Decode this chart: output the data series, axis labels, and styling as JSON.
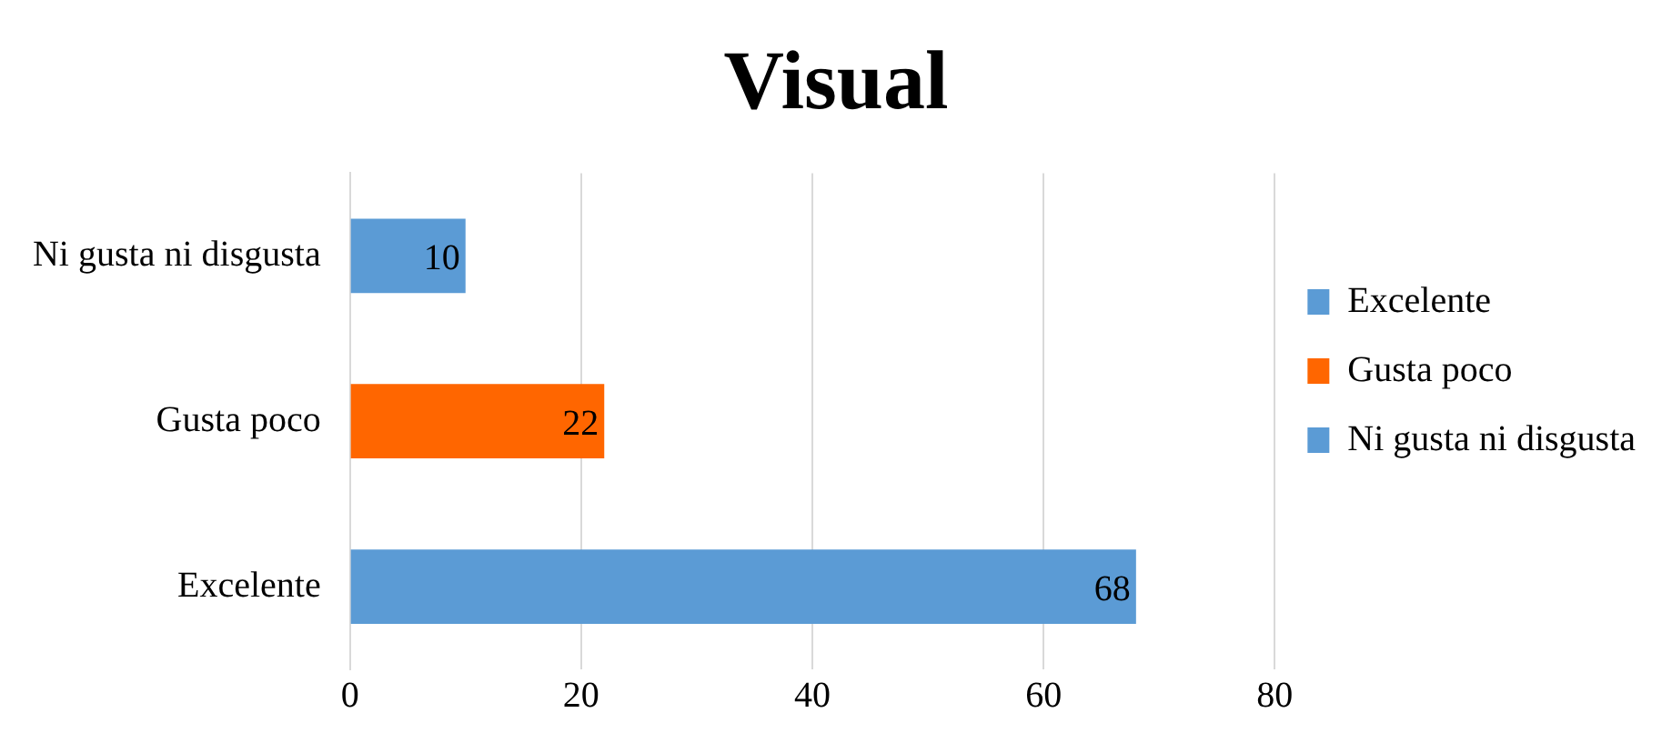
{
  "chart_data": {
    "type": "bar",
    "title": "Visual",
    "orientation": "horizontal",
    "stacked": true,
    "categories": [
      "Ni gusta ni disgusta",
      "Gusta poco",
      "Excelente"
    ],
    "series": [
      {
        "name": "Excelente",
        "color": "#5b9bd5",
        "values": [
          null,
          null,
          68
        ]
      },
      {
        "name": "Gusta poco",
        "color": "#ff6600",
        "values": [
          null,
          22,
          null
        ]
      },
      {
        "name": "Ni gusta ni disgusta",
        "color": "#5b9bd5",
        "values": [
          10,
          null,
          null
        ]
      }
    ],
    "xlim": [
      0,
      80
    ],
    "xticks": [
      0,
      20,
      40,
      60,
      80
    ],
    "grid": "x",
    "legend": "right",
    "data_labels": true
  }
}
